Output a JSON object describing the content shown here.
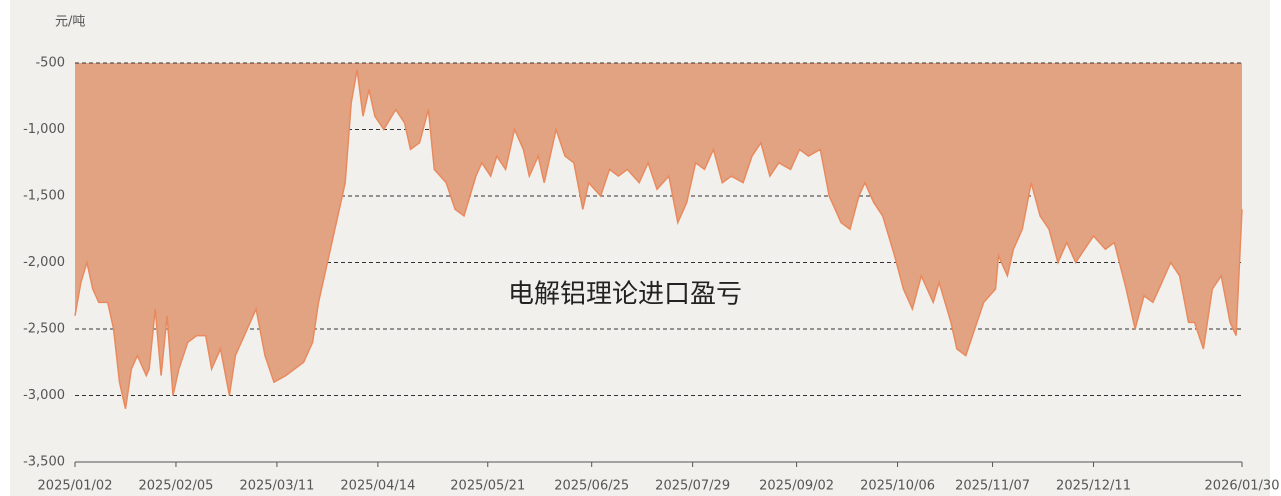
{
  "chart_data": {
    "type": "area",
    "title": "电解铝理论进口盈亏",
    "y_label": "元/吨",
    "fill_color": "#e2a383",
    "line_color": "#e98a5e",
    "grid": true,
    "xlim": [
      "2025/01/02",
      "2026/01/30"
    ],
    "xticks": [
      "2025/01/02",
      "2025/02/05",
      "2025/03/11",
      "2025/04/14",
      "2025/05/21",
      "2025/06/25",
      "2025/07/29",
      "2025/09/02",
      "2025/10/06",
      "2025/11/07",
      "2025/12/11",
      "2026/01/30"
    ],
    "ylim": [
      -3500,
      -500
    ],
    "yticks": [
      -500,
      {
        "value": -1000,
        "label": "-1,000"
      },
      {
        "value": -1500,
        "label": "-1,500"
      },
      {
        "value": -2000,
        "label": "-2,000"
      },
      {
        "value": -2500,
        "label": "-2,500"
      },
      {
        "value": -3000,
        "label": "-3,000"
      },
      {
        "value": -3500,
        "label": "-3,500"
      }
    ],
    "x": [
      "2025/01/02",
      "2025/01/04",
      "2025/01/06",
      "2025/01/08",
      "2025/01/10",
      "2025/01/13",
      "2025/01/15",
      "2025/01/17",
      "2025/01/19",
      "2025/01/21",
      "2025/01/23",
      "2025/01/26",
      "2025/01/27",
      "2025/01/29",
      "2025/01/31",
      "2025/02/02",
      "2025/02/04",
      "2025/02/06",
      "2025/02/09",
      "2025/02/12",
      "2025/02/15",
      "2025/02/17",
      "2025/02/20",
      "2025/02/23",
      "2025/02/25",
      "2025/02/28",
      "2025/03/04",
      "2025/03/07",
      "2025/03/10",
      "2025/03/14",
      "2025/03/17",
      "2025/03/20",
      "2025/03/23",
      "2025/03/25",
      "2025/03/29",
      "2025/04/01",
      "2025/04/03",
      "2025/04/05",
      "2025/04/07",
      "2025/04/09",
      "2025/04/11",
      "2025/04/13",
      "2025/04/16",
      "2025/04/20",
      "2025/04/23",
      "2025/04/25",
      "2025/04/28",
      "2025/05/01",
      "2025/05/03",
      "2025/05/07",
      "2025/05/10",
      "2025/05/13",
      "2025/05/17",
      "2025/05/19",
      "2025/05/22",
      "2025/05/24",
      "2025/05/27",
      "2025/05/30",
      "2025/06/02",
      "2025/06/04",
      "2025/06/07",
      "2025/06/09",
      "2025/06/13",
      "2025/06/16",
      "2025/06/19",
      "2025/06/22",
      "2025/06/24",
      "2025/06/28",
      "2025/07/01",
      "2025/07/04",
      "2025/07/07",
      "2025/07/11",
      "2025/07/14",
      "2025/07/17",
      "2025/07/21",
      "2025/07/24",
      "2025/07/27",
      "2025/07/30",
      "2025/08/02",
      "2025/08/05",
      "2025/08/08",
      "2025/08/11",
      "2025/08/15",
      "2025/08/18",
      "2025/08/21",
      "2025/08/24",
      "2025/08/27",
      "2025/08/31",
      "2025/09/03",
      "2025/09/06",
      "2025/09/10",
      "2025/09/13",
      "2025/09/17",
      "2025/09/20",
      "2025/09/23",
      "2025/09/25",
      "2025/09/28",
      "2025/10/01",
      "2025/10/05",
      "2025/10/08",
      "2025/10/11",
      "2025/10/14",
      "2025/10/18",
      "2025/10/20",
      "2025/10/24",
      "2025/10/26",
      "2025/10/29",
      "2025/11/01",
      "2025/11/04",
      "2025/11/08",
      "2025/11/09",
      "2025/11/12",
      "2025/11/14",
      "2025/11/17",
      "2025/11/20",
      "2025/11/23",
      "2025/11/26",
      "2025/11/29",
      "2025/12/02",
      "2025/12/05",
      "2025/12/08",
      "2025/12/11",
      "2025/12/15",
      "2025/12/18",
      "2025/12/22",
      "2025/12/25",
      "2025/12/28",
      "2025/12/31",
      "2026/01/02",
      "2026/01/06",
      "2026/01/09",
      "2026/01/12",
      "2026/01/14",
      "2026/01/17",
      "2026/01/20",
      "2026/01/23",
      "2026/01/26",
      "2026/01/28",
      "2026/01/30"
    ],
    "series": [
      {
        "values": [
          -2400,
          -2150,
          -2000,
          -2200,
          -2300,
          -2300,
          -2500,
          -2900,
          -3100,
          -2800,
          -2700,
          -2850,
          -2800,
          -2350,
          -2850,
          -2400,
          -3000,
          -2800,
          -2600,
          -2550,
          -2550,
          -2800,
          -2650,
          -3000,
          -2700,
          -2550,
          -2350,
          -2700,
          -2900,
          -2850,
          -2800,
          -2750,
          -2600,
          -2300,
          -1900,
          -1600,
          -1400,
          -800,
          -550,
          -900,
          -700,
          -900,
          -1000,
          -850,
          -950,
          -1150,
          -1100,
          -850,
          -1300,
          -1400,
          -1600,
          -1650,
          -1350,
          -1250,
          -1350,
          -1200,
          -1300,
          -1000,
          -1150,
          -1350,
          -1200,
          -1400,
          -1000,
          -1200,
          -1250,
          -1600,
          -1400,
          -1500,
          -1300,
          -1350,
          -1300,
          -1400,
          -1250,
          -1450,
          -1350,
          -1700,
          -1550,
          -1250,
          -1300,
          -1150,
          -1400,
          -1350,
          -1400,
          -1200,
          -1100,
          -1350,
          -1250,
          -1300,
          -1150,
          -1200,
          -1150,
          -1500,
          -1700,
          -1750,
          -1500,
          -1400,
          -1550,
          -1650,
          -1950,
          -2200,
          -2350,
          -2100,
          -2300,
          -2150,
          -2450,
          -2650,
          -2700,
          -2500,
          -2300,
          -2200,
          -1950,
          -2100,
          -1900,
          -1750,
          -1400,
          -1650,
          -1750,
          -2000,
          -1850,
          -2000,
          -1900,
          -1800,
          -1900,
          -1850,
          -2200,
          -2500,
          -2250,
          -2300,
          -2200,
          -2000,
          -2100,
          -2450,
          -2450,
          -2650,
          -2200,
          -2100,
          -2450,
          -2550,
          -1600
        ]
      }
    ]
  }
}
